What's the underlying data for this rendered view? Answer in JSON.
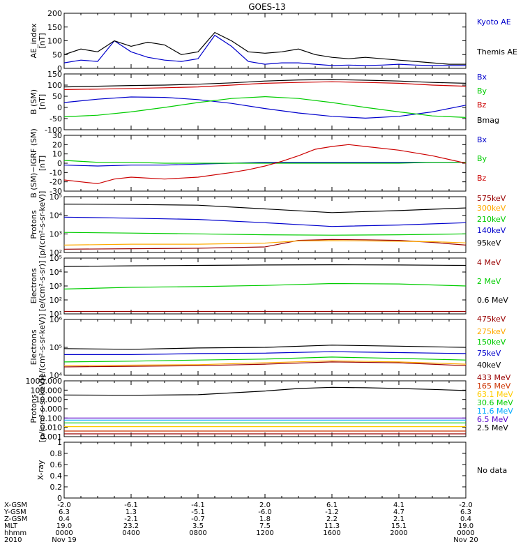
{
  "title": "GOES-13",
  "no_data_text": "No data",
  "time_axis": {
    "rows": [
      {
        "label": "X-GSM",
        "values": [
          "-2.0",
          "-6.1",
          "-4.1",
          "2.0",
          "6.1",
          "4.1",
          "-2.0"
        ]
      },
      {
        "label": "Y-GSM",
        "values": [
          "6.3",
          "1.3",
          "-5.1",
          "-6.0",
          "-1.2",
          "4.7",
          "6.3"
        ]
      },
      {
        "label": "Z-GSM",
        "values": [
          "0.4",
          "-2.1",
          "-0.7",
          "1.8",
          "2.2",
          "2.1",
          "0.4"
        ]
      },
      {
        "label": "MLT",
        "values": [
          "19.0",
          "23.2",
          "3.5",
          "7.5",
          "11.3",
          "15.1",
          "19.0"
        ]
      },
      {
        "label": "hhmm",
        "values": [
          "0000",
          "0400",
          "0800",
          "1200",
          "1600",
          "2000",
          "0000"
        ]
      },
      {
        "label": "2010",
        "values": [
          "Nov 19",
          "",
          "",
          "",
          "",
          "",
          "Nov 20"
        ]
      }
    ]
  },
  "chart_data": [
    {
      "type": "line",
      "id": "ae",
      "ylabel": "AE_index\n[nT]",
      "scale": "linear",
      "ylim": [
        0,
        200
      ],
      "yticks": [
        0,
        50,
        100,
        150,
        200
      ],
      "series": [
        {
          "name": "Kyoto AE",
          "color": "#0000cc",
          "x": [
            0,
            1,
            2,
            3,
            4,
            5,
            6,
            7,
            8,
            9,
            10,
            11,
            12,
            13,
            14,
            15,
            16,
            17,
            18,
            19,
            20,
            21,
            22,
            23,
            24
          ],
          "values": [
            20,
            30,
            25,
            100,
            60,
            40,
            30,
            25,
            35,
            120,
            80,
            25,
            15,
            20,
            20,
            15,
            10,
            12,
            10,
            12,
            15,
            12,
            10,
            10,
            10
          ]
        },
        {
          "name": "Themis AE",
          "color": "#000000",
          "x": [
            0,
            1,
            2,
            3,
            4,
            5,
            6,
            7,
            8,
            9,
            10,
            11,
            12,
            13,
            14,
            15,
            16,
            17,
            18,
            19,
            20,
            21,
            22,
            23,
            24
          ],
          "values": [
            50,
            70,
            60,
            100,
            80,
            95,
            85,
            50,
            60,
            130,
            100,
            60,
            55,
            60,
            70,
            50,
            40,
            35,
            40,
            35,
            30,
            25,
            20,
            15,
            15
          ]
        }
      ]
    },
    {
      "type": "line",
      "id": "bsm",
      "ylabel": "B (SM)\n[nT]",
      "scale": "linear",
      "ylim": [
        -100,
        150
      ],
      "yticks": [
        -100,
        -50,
        0,
        50,
        100,
        150
      ],
      "series": [
        {
          "name": "Bx",
          "color": "#0000cc",
          "x": [
            0,
            2,
            4,
            6,
            8,
            10,
            12,
            14,
            16,
            18,
            20,
            22,
            24
          ],
          "values": [
            22,
            37,
            47,
            45,
            35,
            18,
            -5,
            -25,
            -40,
            -48,
            -40,
            -20,
            10
          ]
        },
        {
          "name": "By",
          "color": "#00cc00",
          "x": [
            0,
            2,
            4,
            6,
            8,
            10,
            12,
            14,
            16,
            18,
            20,
            22,
            24
          ],
          "values": [
            -42,
            -35,
            -20,
            0,
            22,
            40,
            48,
            40,
            22,
            0,
            -20,
            -38,
            -45
          ]
        },
        {
          "name": "Bz",
          "color": "#cc0000",
          "x": [
            0,
            2,
            4,
            6,
            8,
            10,
            12,
            14,
            16,
            18,
            20,
            22,
            24
          ],
          "values": [
            80,
            82,
            85,
            88,
            92,
            100,
            108,
            112,
            115,
            112,
            108,
            100,
            95
          ]
        },
        {
          "name": "Bmag",
          "color": "#000000",
          "x": [
            0,
            2,
            4,
            6,
            8,
            10,
            12,
            14,
            16,
            18,
            20,
            22,
            24
          ],
          "values": [
            92,
            95,
            98,
            100,
            104,
            110,
            118,
            123,
            125,
            122,
            118,
            112,
            108
          ]
        }
      ]
    },
    {
      "type": "line",
      "id": "bigrf",
      "ylabel": "B (SM)−IGRF (SM)\n[nT]",
      "scale": "linear",
      "ylim": [
        -30,
        30
      ],
      "yticks": [
        -30,
        -20,
        -10,
        0,
        10,
        20,
        30
      ],
      "series": [
        {
          "name": "Bx",
          "color": "#0000cc",
          "x": [
            0,
            2,
            4,
            6,
            8,
            10,
            12,
            14,
            16,
            18,
            20,
            22,
            24
          ],
          "values": [
            -2,
            -3,
            -2,
            -2,
            -1,
            0,
            1,
            1,
            1,
            1,
            1,
            1,
            1
          ]
        },
        {
          "name": "By",
          "color": "#00cc00",
          "x": [
            0,
            2,
            4,
            6,
            8,
            10,
            12,
            14,
            16,
            18,
            20,
            22,
            24
          ],
          "values": [
            3,
            1,
            1,
            0,
            0,
            0,
            0,
            0,
            0,
            0,
            0,
            1,
            1
          ]
        },
        {
          "name": "Bz",
          "color": "#cc0000",
          "x": [
            0,
            1,
            2,
            3,
            4,
            6,
            8,
            10,
            11,
            12,
            13,
            14,
            15,
            16,
            17,
            18,
            20,
            22,
            24
          ],
          "values": [
            -18,
            -20,
            -22,
            -17,
            -15,
            -17,
            -15,
            -10,
            -7,
            -3,
            2,
            8,
            15,
            18,
            20,
            18,
            14,
            8,
            0
          ]
        }
      ]
    },
    {
      "type": "line",
      "id": "protons",
      "ylabel": "Protons\n[p/(cm²-s-sr-keV)]",
      "scale": "log",
      "ylim": [
        100,
        100000
      ],
      "ytick_labels": [
        "10²",
        "10³",
        "10⁴",
        "10⁵"
      ],
      "series": [
        {
          "name": "575keV",
          "color": "#990000",
          "x": [
            0,
            4,
            8,
            12,
            14,
            16,
            18,
            20,
            22,
            24
          ],
          "values": [
            150,
            160,
            170,
            200,
            450,
            500,
            480,
            450,
            350,
            250
          ]
        },
        {
          "name": "300keV",
          "color": "#ffaa00",
          "x": [
            0,
            4,
            8,
            12,
            14,
            16,
            18,
            20,
            22,
            24
          ],
          "values": [
            250,
            280,
            280,
            320,
            420,
            430,
            420,
            400,
            380,
            330
          ]
        },
        {
          "name": "210keV",
          "color": "#00cc00",
          "x": [
            0,
            4,
            8,
            12,
            16,
            20,
            24
          ],
          "values": [
            1200,
            1100,
            1000,
            900,
            850,
            900,
            1000
          ]
        },
        {
          "name": "140keV",
          "color": "#0000cc",
          "x": [
            0,
            4,
            8,
            12,
            16,
            20,
            24
          ],
          "values": [
            8000,
            7000,
            6000,
            4000,
            2500,
            3000,
            4000
          ]
        },
        {
          "name": "95keV",
          "color": "#000000",
          "x": [
            0,
            4,
            8,
            12,
            16,
            20,
            24
          ],
          "values": [
            40000,
            38000,
            35000,
            22000,
            14000,
            18000,
            25000
          ]
        }
      ]
    },
    {
      "type": "line",
      "id": "electrons-mev",
      "ylabel": "Electrons\n[e/(cm²-s-sr)]",
      "scale": "log",
      "ylim": [
        10,
        100000
      ],
      "ytick_labels": [
        "10¹",
        "10²",
        "10³",
        "10⁴",
        "10⁵"
      ],
      "series": [
        {
          "name": "4 MeV",
          "color": "#990000",
          "x": [
            0,
            24
          ],
          "values": [
            15,
            15
          ]
        },
        {
          "name": "2 MeV",
          "color": "#00cc00",
          "x": [
            0,
            4,
            8,
            12,
            16,
            20,
            24
          ],
          "values": [
            600,
            800,
            900,
            1100,
            1500,
            1400,
            1000
          ]
        },
        {
          "name": "0.6 MeV",
          "color": "#000000",
          "x": [
            0,
            4,
            8,
            12,
            16,
            20,
            24
          ],
          "values": [
            25000,
            28000,
            30000,
            32000,
            33000,
            32000,
            30000
          ]
        }
      ]
    },
    {
      "type": "line",
      "id": "electrons-kev",
      "ylabel": "Electrons\n[e/(cm²-s-sr-keV)]",
      "scale": "log",
      "ylim": [
        10000,
        1000000
      ],
      "ytick_labels": [
        "10⁴",
        "10⁵",
        "10⁶"
      ],
      "series": [
        {
          "name": "475keV",
          "color": "#990000",
          "x": [
            0,
            4,
            8,
            12,
            16,
            20,
            24
          ],
          "values": [
            20000,
            21000,
            22000,
            25000,
            30000,
            28000,
            22000
          ]
        },
        {
          "name": "275keV",
          "color": "#ffaa00",
          "x": [
            0,
            4,
            8,
            12,
            16,
            20,
            24
          ],
          "values": [
            22000,
            23000,
            24000,
            28000,
            33000,
            30000,
            25000
          ]
        },
        {
          "name": "150keV",
          "color": "#00cc00",
          "x": [
            0,
            4,
            8,
            12,
            16,
            20,
            24
          ],
          "values": [
            30000,
            32000,
            35000,
            38000,
            45000,
            40000,
            35000
          ]
        },
        {
          "name": "75keV",
          "color": "#0000cc",
          "x": [
            0,
            4,
            8,
            12,
            16,
            20,
            24
          ],
          "values": [
            55000,
            55000,
            60000,
            62000,
            70000,
            65000,
            60000
          ]
        },
        {
          "name": "40keV",
          "color": "#000000",
          "x": [
            0,
            4,
            8,
            12,
            16,
            20,
            24
          ],
          "values": [
            90000,
            85000,
            95000,
            100000,
            120000,
            110000,
            100000
          ]
        }
      ]
    },
    {
      "type": "line",
      "id": "protons-mev",
      "ylabel": "Protons\n[p/(cm²-s-sr-keV)]",
      "scale": "log",
      "ylim": [
        0.001,
        1000
      ],
      "ytick_labels": [
        "0.001",
        "0.010",
        "0.100",
        "1.000",
        "10.000",
        "100.000",
        "1000.000"
      ],
      "series": [
        {
          "name": "433 MeV",
          "color": "#990000",
          "x": [
            0,
            24
          ],
          "values": [
            0.002,
            0.002
          ]
        },
        {
          "name": "165 MeV",
          "color": "#cc3300",
          "x": [
            0,
            24
          ],
          "values": [
            0.004,
            0.004
          ]
        },
        {
          "name": "63.1 MeV",
          "color": "#ffcc00",
          "x": [
            0,
            24
          ],
          "values": [
            0.012,
            0.012
          ]
        },
        {
          "name": "30.6 MeV",
          "color": "#00cc00",
          "x": [
            0,
            24
          ],
          "values": [
            0.03,
            0.03
          ]
        },
        {
          "name": "11.6 MeV",
          "color": "#00aaff",
          "x": [
            0,
            24
          ],
          "values": [
            0.06,
            0.06
          ]
        },
        {
          "name": "6.5 MeV",
          "color": "#5500cc",
          "x": [
            0,
            24
          ],
          "values": [
            0.1,
            0.1
          ]
        },
        {
          "name": "2.5 MeV",
          "color": "#000000",
          "x": [
            0,
            4,
            8,
            12,
            14,
            16,
            18,
            20,
            22,
            24
          ],
          "values": [
            30,
            28,
            32,
            80,
            150,
            200,
            180,
            150,
            120,
            90
          ]
        }
      ]
    },
    {
      "type": "line",
      "id": "xray",
      "ylabel": "X-ray",
      "scale": "linear",
      "ylim": [
        0,
        1
      ],
      "yticks": [
        0.0,
        0.2,
        0.4,
        0.6,
        0.8,
        1.0
      ],
      "series": []
    }
  ]
}
